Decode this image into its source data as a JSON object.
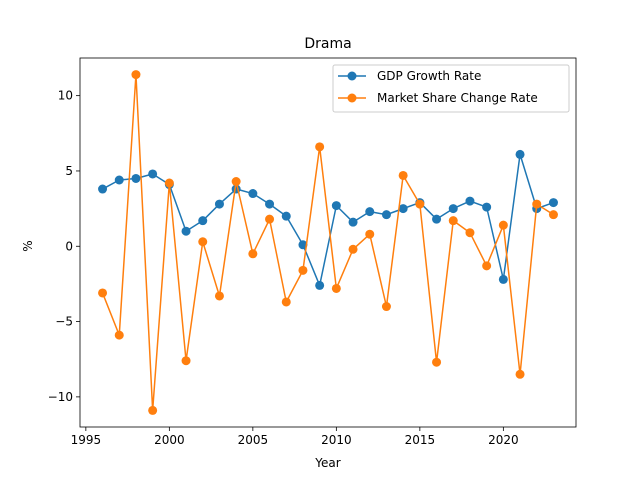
{
  "chart_data": {
    "type": "line",
    "title": "Drama",
    "xlabel": "Year",
    "ylabel": "%",
    "xlim": [
      1994.65,
      2024.35
    ],
    "ylim": [
      -12.0,
      12.5
    ],
    "x_ticks": [
      1995,
      2000,
      2005,
      2010,
      2015,
      2020
    ],
    "y_ticks": [
      -10,
      -5,
      0,
      5,
      10
    ],
    "x_tick_labels": [
      "1995",
      "2000",
      "2005",
      "2010",
      "2015",
      "2020"
    ],
    "y_tick_labels": [
      "−10",
      "−5",
      "0",
      "5",
      "10"
    ],
    "legend_position": "top-right",
    "grid": false,
    "x": [
      1996,
      1997,
      1998,
      1999,
      2000,
      2001,
      2002,
      2003,
      2004,
      2005,
      2006,
      2007,
      2008,
      2009,
      2010,
      2011,
      2012,
      2013,
      2014,
      2015,
      2016,
      2017,
      2018,
      2019,
      2020,
      2021,
      2022,
      2023
    ],
    "series": [
      {
        "name": "GDP Growth Rate",
        "color": "#1f77b4",
        "values": [
          3.8,
          4.4,
          4.5,
          4.8,
          4.1,
          1.0,
          1.7,
          2.8,
          3.8,
          3.5,
          2.8,
          2.0,
          0.1,
          -2.6,
          2.7,
          1.6,
          2.3,
          2.1,
          2.5,
          2.9,
          1.8,
          2.5,
          3.0,
          2.6,
          -2.2,
          6.1,
          2.5,
          2.9
        ]
      },
      {
        "name": "Market Share Change Rate",
        "color": "#ff7f0e",
        "values": [
          -3.1,
          -5.9,
          11.4,
          -10.9,
          4.2,
          -7.6,
          0.3,
          -3.3,
          4.3,
          -0.5,
          1.8,
          -3.7,
          -1.6,
          6.6,
          -2.8,
          -0.2,
          0.8,
          -4.0,
          4.7,
          2.8,
          -7.7,
          1.7,
          0.9,
          -1.3,
          1.4,
          -8.5,
          2.8,
          2.1
        ]
      }
    ]
  }
}
